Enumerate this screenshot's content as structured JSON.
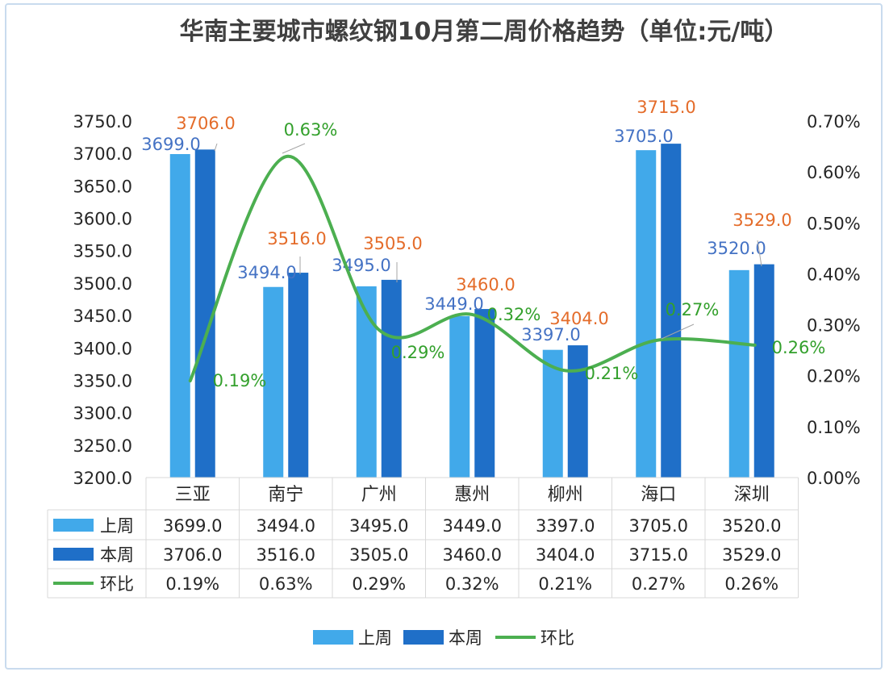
{
  "chart_data": {
    "type": "bar",
    "title": "华南主要城市螺纹钢10月第二周价格趋势（单位:元/吨）",
    "categories": [
      "三亚",
      "南宁",
      "广州",
      "惠州",
      "柳州",
      "海口",
      "深圳"
    ],
    "series": [
      {
        "name": "上周",
        "type": "bar",
        "axis": "left",
        "color": "#41a9ea",
        "values": [
          3699.0,
          3494.0,
          3495.0,
          3449.0,
          3397.0,
          3705.0,
          3520.0
        ],
        "labels": [
          "3699.0",
          "3494.0",
          "3495.0",
          "3449.0",
          "3397.0",
          "3705.0",
          "3520.0"
        ],
        "label_color": "#4472c4"
      },
      {
        "name": "本周",
        "type": "bar",
        "axis": "left",
        "color": "#1f6fc8",
        "values": [
          3706.0,
          3516.0,
          3505.0,
          3460.0,
          3404.0,
          3715.0,
          3529.0
        ],
        "labels": [
          "3706.0",
          "3516.0",
          "3505.0",
          "3460.0",
          "3404.0",
          "3715.0",
          "3529.0"
        ],
        "label_color": "#e46c2a"
      },
      {
        "name": "环比",
        "type": "line",
        "axis": "right",
        "color": "#4caf50",
        "values": [
          0.19,
          0.63,
          0.29,
          0.32,
          0.21,
          0.27,
          0.26
        ],
        "labels": [
          "0.19%",
          "0.63%",
          "0.29%",
          "0.32%",
          "0.21%",
          "0.27%",
          "0.26%"
        ],
        "label_color": "#33a02c"
      }
    ],
    "y_left": {
      "ylim": [
        3200,
        3750
      ],
      "ticks": [
        "3200.0",
        "3250.0",
        "3300.0",
        "3350.0",
        "3400.0",
        "3450.0",
        "3500.0",
        "3550.0",
        "3600.0",
        "3650.0",
        "3700.0",
        "3750.0"
      ]
    },
    "y_right": {
      "ylim": [
        0,
        0.7
      ],
      "ticks": [
        "0.00%",
        "0.10%",
        "0.20%",
        "0.30%",
        "0.40%",
        "0.50%",
        "0.60%",
        "0.70%"
      ]
    },
    "data_table": true,
    "legend_position": "bottom",
    "grid": false
  }
}
